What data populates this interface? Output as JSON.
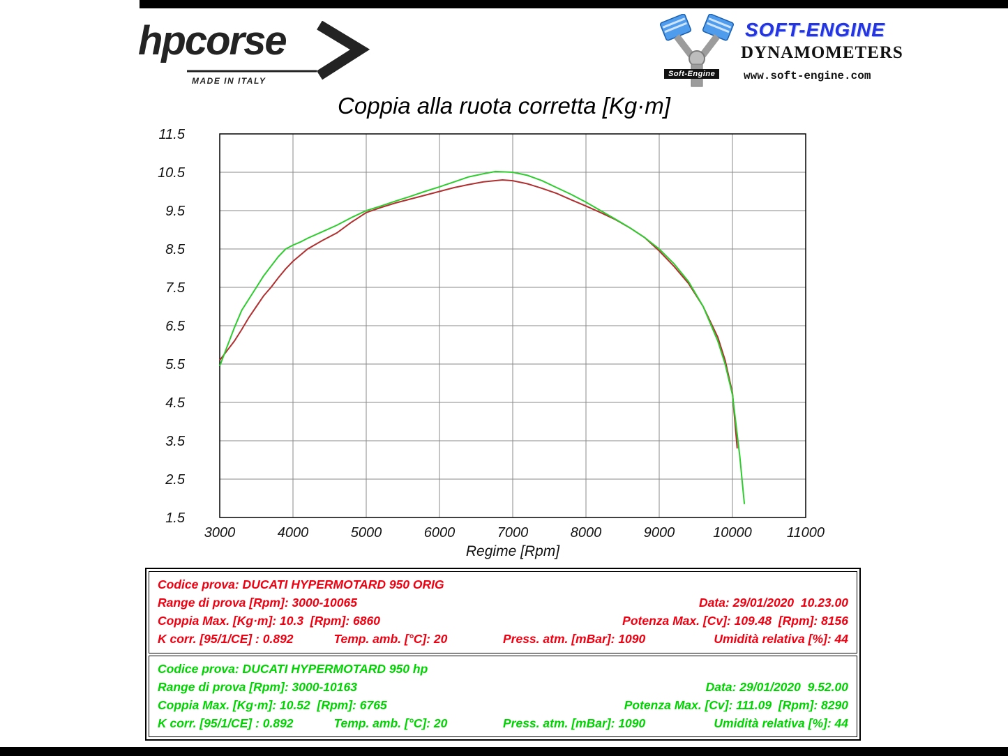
{
  "branding": {
    "hpcorse": {
      "wordmark": "hpcorse",
      "tagline": "MADE IN ITALY"
    },
    "softengine": {
      "graphic_label": "Soft-Engine",
      "brand": "SOFT-ENGINE",
      "brand_color": "#2334e0",
      "subtitle": "DYNAMOMETERS",
      "website": "www.soft-engine.com"
    }
  },
  "chart_data": {
    "type": "line",
    "title": "Coppia alla ruota corretta [Kg·m]",
    "xlabel": "Regime [Rpm]",
    "ylabel": "",
    "xlim": [
      3000,
      11000
    ],
    "ylim": [
      1.5,
      11.5
    ],
    "x_ticks": [
      3000,
      4000,
      5000,
      6000,
      7000,
      8000,
      9000,
      10000,
      11000
    ],
    "y_ticks": [
      1.5,
      2.5,
      3.5,
      4.5,
      5.5,
      6.5,
      7.5,
      8.5,
      9.5,
      10.5,
      11.5
    ],
    "grid": true,
    "legend": "none",
    "series": [
      {
        "name": "DUCATI HYPERMOTARD 950 ORIG",
        "color": "#b03030",
        "points": [
          [
            3000,
            5.6
          ],
          [
            3100,
            5.85
          ],
          [
            3200,
            6.1
          ],
          [
            3300,
            6.4
          ],
          [
            3400,
            6.72
          ],
          [
            3500,
            7.0
          ],
          [
            3600,
            7.28
          ],
          [
            3700,
            7.5
          ],
          [
            3800,
            7.75
          ],
          [
            3900,
            7.98
          ],
          [
            4000,
            8.18
          ],
          [
            4200,
            8.5
          ],
          [
            4400,
            8.72
          ],
          [
            4600,
            8.92
          ],
          [
            4800,
            9.2
          ],
          [
            5000,
            9.45
          ],
          [
            5200,
            9.58
          ],
          [
            5400,
            9.7
          ],
          [
            5600,
            9.8
          ],
          [
            5800,
            9.9
          ],
          [
            6000,
            10.0
          ],
          [
            6200,
            10.1
          ],
          [
            6400,
            10.18
          ],
          [
            6600,
            10.25
          ],
          [
            6860,
            10.3
          ],
          [
            7000,
            10.28
          ],
          [
            7200,
            10.2
          ],
          [
            7400,
            10.08
          ],
          [
            7600,
            9.95
          ],
          [
            7800,
            9.78
          ],
          [
            8000,
            9.62
          ],
          [
            8200,
            9.45
          ],
          [
            8400,
            9.27
          ],
          [
            8600,
            9.05
          ],
          [
            8800,
            8.8
          ],
          [
            9000,
            8.45
          ],
          [
            9200,
            8.05
          ],
          [
            9400,
            7.6
          ],
          [
            9600,
            7.0
          ],
          [
            9800,
            6.2
          ],
          [
            9900,
            5.6
          ],
          [
            10000,
            4.75
          ],
          [
            10065,
            3.3
          ]
        ]
      },
      {
        "name": "DUCATI HYPERMOTARD 950 hp",
        "color": "#2ecc2e",
        "points": [
          [
            3000,
            5.45
          ],
          [
            3100,
            5.95
          ],
          [
            3200,
            6.45
          ],
          [
            3300,
            6.9
          ],
          [
            3400,
            7.2
          ],
          [
            3500,
            7.5
          ],
          [
            3600,
            7.8
          ],
          [
            3700,
            8.05
          ],
          [
            3800,
            8.3
          ],
          [
            3900,
            8.5
          ],
          [
            4000,
            8.6
          ],
          [
            4100,
            8.68
          ],
          [
            4200,
            8.78
          ],
          [
            4400,
            8.95
          ],
          [
            4600,
            9.12
          ],
          [
            4800,
            9.32
          ],
          [
            5000,
            9.5
          ],
          [
            5200,
            9.62
          ],
          [
            5400,
            9.75
          ],
          [
            5600,
            9.87
          ],
          [
            5800,
            10.0
          ],
          [
            6000,
            10.12
          ],
          [
            6200,
            10.25
          ],
          [
            6400,
            10.38
          ],
          [
            6600,
            10.46
          ],
          [
            6765,
            10.52
          ],
          [
            7000,
            10.5
          ],
          [
            7200,
            10.42
          ],
          [
            7400,
            10.28
          ],
          [
            7600,
            10.1
          ],
          [
            7800,
            9.92
          ],
          [
            8000,
            9.72
          ],
          [
            8200,
            9.5
          ],
          [
            8400,
            9.28
          ],
          [
            8600,
            9.05
          ],
          [
            8800,
            8.8
          ],
          [
            9000,
            8.5
          ],
          [
            9200,
            8.12
          ],
          [
            9400,
            7.65
          ],
          [
            9600,
            7.0
          ],
          [
            9800,
            6.1
          ],
          [
            9900,
            5.5
          ],
          [
            10000,
            4.7
          ],
          [
            10100,
            3.1
          ],
          [
            10163,
            1.85
          ]
        ]
      }
    ]
  },
  "info_boxes": [
    {
      "text_color": "#ee0011",
      "codice": "Codice prova: DUCATI HYPERMOTARD 950 ORIG",
      "range": "Range di prova [Rpm]: 3000-10065",
      "data": "Data: 29/01/2020  10.23.00",
      "coppia": "Coppia Max. [Kg·m]: 10.3  [Rpm]: 6860",
      "potenza": "Potenza Max. [Cv]: 109.48  [Rpm]: 8156",
      "kcorr": "K corr. [95/1/CE] : 0.892",
      "temp": "Temp. amb. [°C]: 20",
      "press": "Press. atm. [mBar]: 1090",
      "umidita": "Umidità relativa [%]: 44"
    },
    {
      "text_color": "#00d400",
      "codice": "Codice prova: DUCATI HYPERMOTARD 950 hp",
      "range": "Range di prova [Rpm]: 3000-10163",
      "data": "Data: 29/01/2020  9.52.00",
      "coppia": "Coppia Max. [Kg·m]: 10.52  [Rpm]: 6765",
      "potenza": "Potenza Max. [Cv]: 111.09  [Rpm]: 8290",
      "kcorr": "K corr. [95/1/CE] : 0.892",
      "temp": "Temp. amb. [°C]: 20",
      "press": "Press. atm. [mBar]: 1090",
      "umidita": "Umidità relativa [%]: 44"
    }
  ]
}
